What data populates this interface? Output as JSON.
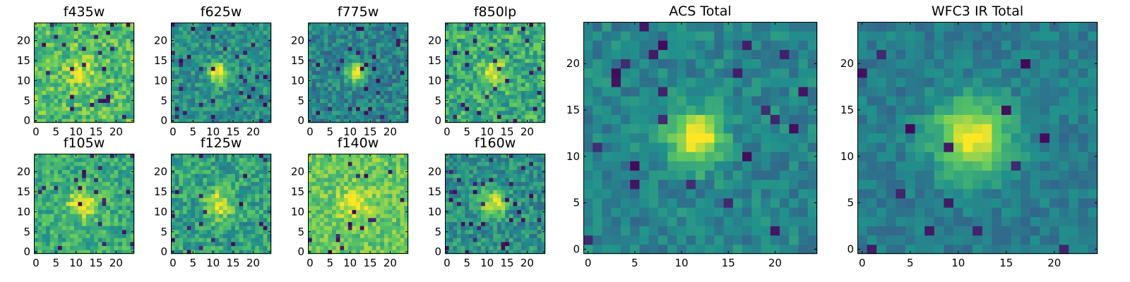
{
  "colormap": {
    "name": "viridis",
    "stops": [
      "#440154",
      "#3b528b",
      "#21918c",
      "#5ec962",
      "#fde725"
    ]
  },
  "chart_data": [
    {
      "type": "heatmap",
      "title": "f435w",
      "xlim": [
        -0.5,
        24.5
      ],
      "ylim": [
        -0.5,
        24.5
      ],
      "xticks": [
        0,
        5,
        10,
        15,
        20
      ],
      "yticks": [
        0,
        5,
        10,
        15,
        20
      ],
      "peak_center": [
        11.5,
        12
      ],
      "shape": [
        25,
        25
      ],
      "grid": false
    },
    {
      "type": "heatmap",
      "title": "f625w",
      "xlim": [
        -0.5,
        24.5
      ],
      "ylim": [
        -0.5,
        24.5
      ],
      "xticks": [
        0,
        5,
        10,
        15,
        20
      ],
      "yticks": [
        0,
        5,
        10,
        15,
        20
      ],
      "peak_center": [
        11.5,
        12
      ],
      "shape": [
        25,
        25
      ],
      "grid": false
    },
    {
      "type": "heatmap",
      "title": "f775w",
      "xlim": [
        -0.5,
        24.5
      ],
      "ylim": [
        -0.5,
        24.5
      ],
      "xticks": [
        0,
        5,
        10,
        15,
        20
      ],
      "yticks": [
        0,
        5,
        10,
        15,
        20
      ],
      "peak_center": [
        11.5,
        12
      ],
      "shape": [
        25,
        25
      ],
      "grid": false
    },
    {
      "type": "heatmap",
      "title": "f850lp",
      "xlim": [
        -0.5,
        24.5
      ],
      "ylim": [
        -0.5,
        24.5
      ],
      "xticks": [
        0,
        5,
        10,
        15,
        20
      ],
      "yticks": [
        0,
        5,
        10,
        15,
        20
      ],
      "peak_center": [
        11.5,
        12
      ],
      "shape": [
        25,
        25
      ],
      "grid": false
    },
    {
      "type": "heatmap",
      "title": "ACS Total",
      "xlim": [
        -0.5,
        24.5
      ],
      "ylim": [
        -0.5,
        24.5
      ],
      "xticks": [
        0,
        5,
        10,
        15,
        20
      ],
      "yticks": [
        0,
        5,
        10,
        15,
        20
      ],
      "peak_center": [
        11.5,
        12
      ],
      "shape": [
        25,
        25
      ],
      "grid": false
    },
    {
      "type": "heatmap",
      "title": "WFC3 IR Total",
      "xlim": [
        -0.5,
        24.5
      ],
      "ylim": [
        -0.5,
        24.5
      ],
      "xticks": [
        0,
        5,
        10,
        15,
        20
      ],
      "yticks": [
        0,
        5,
        10,
        15,
        20
      ],
      "peak_center": [
        11.5,
        12
      ],
      "shape": [
        25,
        25
      ],
      "grid": false
    },
    {
      "type": "heatmap",
      "title": "f105w",
      "xlim": [
        -0.5,
        24.5
      ],
      "ylim": [
        -0.5,
        24.5
      ],
      "xticks": [
        0,
        5,
        10,
        15,
        20
      ],
      "yticks": [
        0,
        5,
        10,
        15,
        20
      ],
      "peak_center": [
        11.5,
        12
      ],
      "shape": [
        25,
        25
      ],
      "grid": false
    },
    {
      "type": "heatmap",
      "title": "f125w",
      "xlim": [
        -0.5,
        24.5
      ],
      "ylim": [
        -0.5,
        24.5
      ],
      "xticks": [
        0,
        5,
        10,
        15,
        20
      ],
      "yticks": [
        0,
        5,
        10,
        15,
        20
      ],
      "peak_center": [
        11.5,
        12
      ],
      "shape": [
        25,
        25
      ],
      "grid": false
    },
    {
      "type": "heatmap",
      "title": "f140w",
      "xlim": [
        -0.5,
        24.5
      ],
      "ylim": [
        -0.5,
        24.5
      ],
      "xticks": [
        0,
        5,
        10,
        15,
        20
      ],
      "yticks": [
        0,
        5,
        10,
        15,
        20
      ],
      "peak_center": [
        11.5,
        12
      ],
      "shape": [
        25,
        25
      ],
      "grid": false
    },
    {
      "type": "heatmap",
      "title": "f160w",
      "xlim": [
        -0.5,
        24.5
      ],
      "ylim": [
        -0.5,
        24.5
      ],
      "xticks": [
        0,
        5,
        10,
        15,
        20
      ],
      "yticks": [
        0,
        5,
        10,
        15,
        20
      ],
      "peak_center": [
        11.5,
        12
      ],
      "shape": [
        25,
        25
      ],
      "grid": false
    }
  ]
}
